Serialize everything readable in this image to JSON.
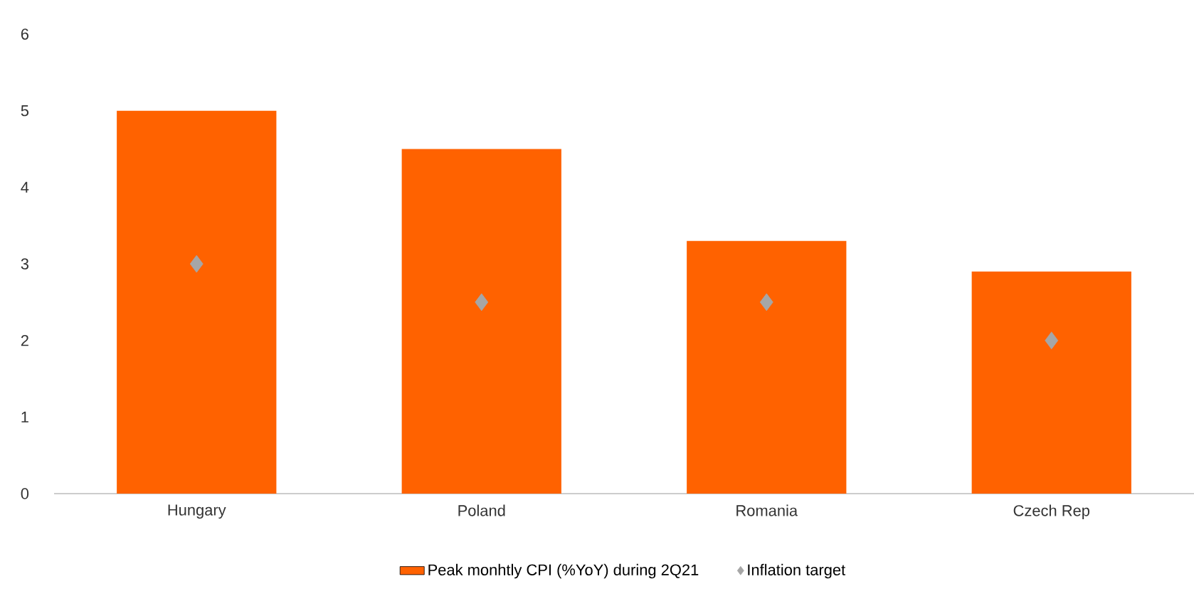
{
  "chart_data": {
    "type": "bar",
    "categories": [
      "Hungary",
      "Poland",
      "Romania",
      "Czech Rep"
    ],
    "series": [
      {
        "name": "Peak monhtly CPI (%YoY) during 2Q21",
        "color": "#ff6200",
        "values": [
          5.0,
          4.5,
          3.3,
          2.9
        ]
      },
      {
        "name": "Inflation target",
        "type": "scatter",
        "color": "#a6a6a6",
        "marker": "diamond",
        "values": [
          3.0,
          2.5,
          2.5,
          2.0
        ]
      }
    ],
    "ylim": [
      0,
      6
    ],
    "yticks": [
      0,
      1,
      2,
      3,
      4,
      5,
      6
    ],
    "grid": false,
    "legend": "bottom"
  }
}
